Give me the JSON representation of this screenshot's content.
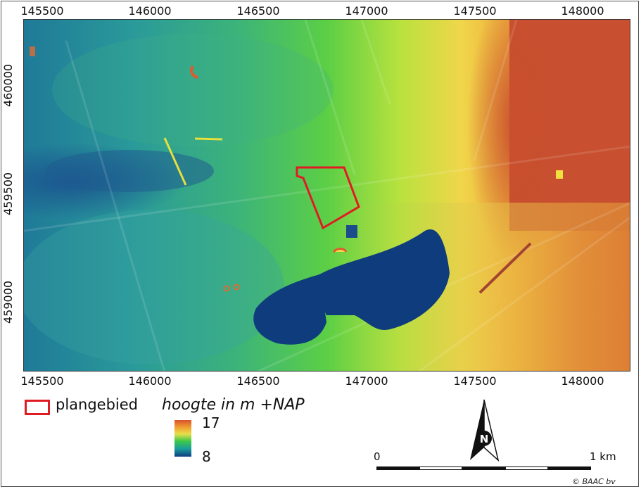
{
  "map": {
    "x_ticks": [
      "145500",
      "146000",
      "146500",
      "147000",
      "147500",
      "148000"
    ],
    "y_ticks": [
      "460000",
      "459500",
      "459000"
    ],
    "study_area_color": "#e01b24"
  },
  "legend": {
    "study_area_label": "plangebied",
    "elevation_title": "hoogte in m +NAP",
    "elevation_max": "17",
    "elevation_min": "8",
    "ramp_colors": [
      "#d9522c",
      "#f0a030",
      "#e8e04a",
      "#3cc84a",
      "#1a9f9a",
      "#103c80"
    ]
  },
  "north_arrow": {
    "letter": "N"
  },
  "scale_bar": {
    "start_label": "0",
    "end_label": "1 km"
  },
  "copyright": "© BAAC bv"
}
